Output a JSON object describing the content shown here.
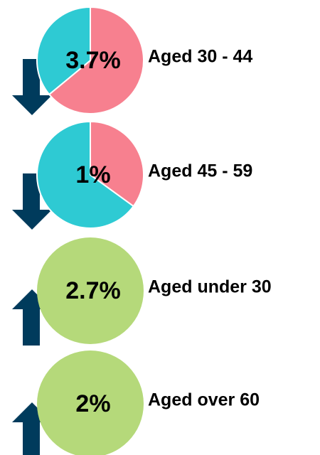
{
  "chart_data": [
    {
      "type": "pie",
      "category": "Aged 30 - 44",
      "annotation": "3.7%",
      "trend": "down",
      "values": [
        64,
        36
      ],
      "colors": [
        "#f7808f",
        "#2ecad3"
      ]
    },
    {
      "type": "pie",
      "category": "Aged 45 - 59",
      "annotation": "1%",
      "trend": "down",
      "values": [
        35,
        65
      ],
      "colors": [
        "#f7808f",
        "#2ecad3"
      ]
    },
    {
      "type": "pie",
      "category": "Aged under 30",
      "annotation": "2.7%",
      "trend": "up",
      "values": [
        100
      ],
      "colors": [
        "#b5d97a"
      ]
    },
    {
      "type": "pie",
      "category": "Aged over 60",
      "annotation": "2%",
      "trend": "up",
      "values": [
        100
      ],
      "colors": [
        "#b5d97a"
      ]
    }
  ]
}
